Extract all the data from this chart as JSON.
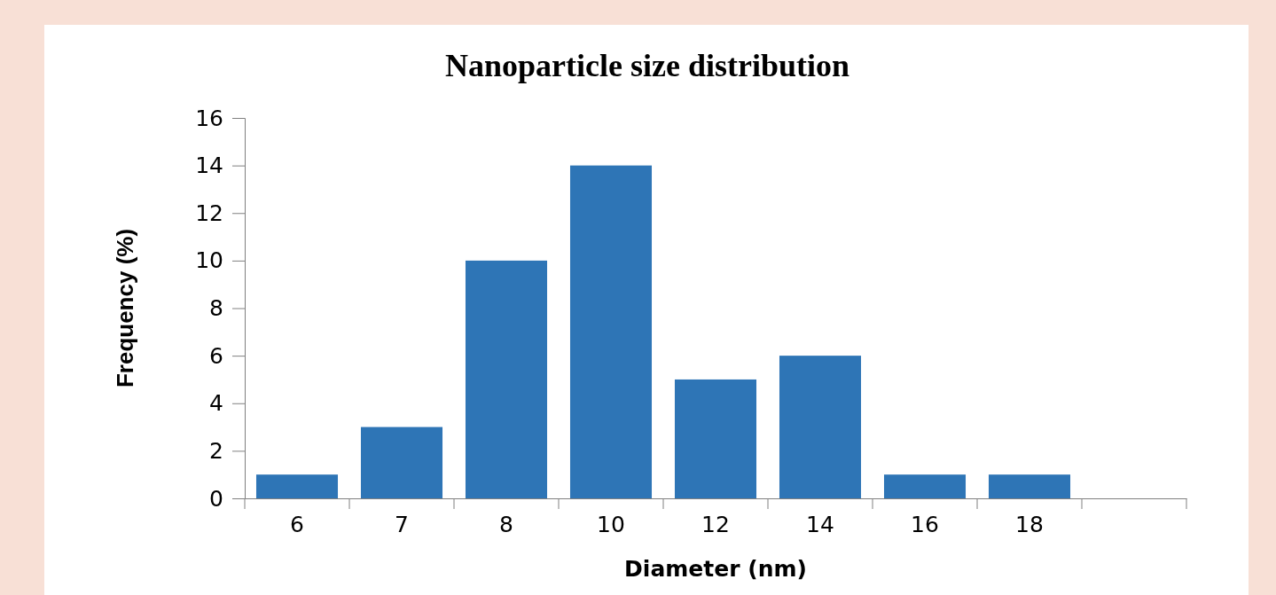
{
  "chart_data": {
    "type": "bar",
    "title": "Nanoparticle size distribution",
    "xlabel": "Diameter (nm)",
    "ylabel": "Frequency (%)",
    "categories": [
      "6",
      "7",
      "8",
      "10",
      "12",
      "14",
      "16",
      "18",
      null
    ],
    "values": [
      1,
      3,
      10,
      14,
      5,
      6,
      1,
      1,
      null
    ],
    "color": "#2e75b6",
    "ylim": [
      0,
      16
    ],
    "yticks": [
      0,
      2,
      4,
      6,
      8,
      10,
      12,
      14,
      16
    ],
    "grid": false
  }
}
